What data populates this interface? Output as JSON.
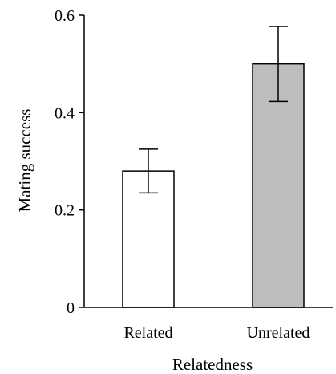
{
  "chart_data": {
    "type": "bar",
    "title": "",
    "xlabel": "Relatedness",
    "ylabel": "Mating success",
    "categories": [
      "Related",
      "Unrelated"
    ],
    "series": [
      {
        "values": [
          0.28,
          0.5
        ],
        "error": [
          0.045,
          0.077
        ]
      }
    ],
    "bar_colors": [
      "#ffffff",
      "#bdbdbd"
    ],
    "bar_edge_color": "#000000",
    "ylim": [
      0,
      0.6
    ],
    "yticks": [
      0,
      0.2,
      0.4,
      0.6
    ],
    "ytick_labels": [
      "0",
      "0.2",
      "0.4",
      "0.6"
    ],
    "grid": false,
    "legend": "none"
  }
}
